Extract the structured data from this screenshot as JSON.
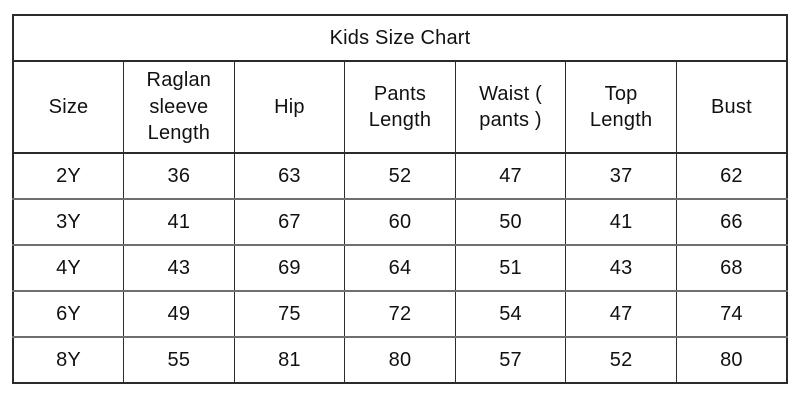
{
  "table": {
    "title": "Kids Size Chart",
    "columns": [
      "Size",
      "Raglan sleeve Length",
      "Hip",
      "Pants Length",
      "Waist ( pants )",
      "Top Length",
      "Bust"
    ],
    "rows": [
      [
        "2Y",
        "36",
        "63",
        "52",
        "47",
        "37",
        "62"
      ],
      [
        "3Y",
        "41",
        "67",
        "60",
        "50",
        "41",
        "66"
      ],
      [
        "4Y",
        "43",
        "69",
        "64",
        "51",
        "43",
        "68"
      ],
      [
        "6Y",
        "49",
        "75",
        "72",
        "54",
        "47",
        "74"
      ],
      [
        "8Y",
        "55",
        "81",
        "80",
        "57",
        "52",
        "80"
      ]
    ]
  },
  "chart_data": {
    "type": "table",
    "title": "Kids Size Chart",
    "columns": [
      "Size",
      "Raglan sleeve Length",
      "Hip",
      "Pants Length",
      "Waist ( pants )",
      "Top Length",
      "Bust"
    ],
    "rows": [
      {
        "size": "2Y",
        "raglan_sleeve_length": 36,
        "hip": 63,
        "pants_length": 52,
        "waist_pants": 47,
        "top_length": 37,
        "bust": 62
      },
      {
        "size": "3Y",
        "raglan_sleeve_length": 41,
        "hip": 67,
        "pants_length": 60,
        "waist_pants": 50,
        "top_length": 41,
        "bust": 66
      },
      {
        "size": "4Y",
        "raglan_sleeve_length": 43,
        "hip": 69,
        "pants_length": 64,
        "waist_pants": 51,
        "top_length": 43,
        "bust": 68
      },
      {
        "size": "6Y",
        "raglan_sleeve_length": 49,
        "hip": 75,
        "pants_length": 72,
        "waist_pants": 54,
        "top_length": 47,
        "bust": 74
      },
      {
        "size": "8Y",
        "raglan_sleeve_length": 55,
        "hip": 81,
        "pants_length": 80,
        "waist_pants": 57,
        "top_length": 52,
        "bust": 80
      }
    ]
  },
  "colors": {
    "background": "#ffffff",
    "text": "#111111",
    "border_dark": "#2b2b2b",
    "row_separator_gray": "#6f6f6f"
  }
}
